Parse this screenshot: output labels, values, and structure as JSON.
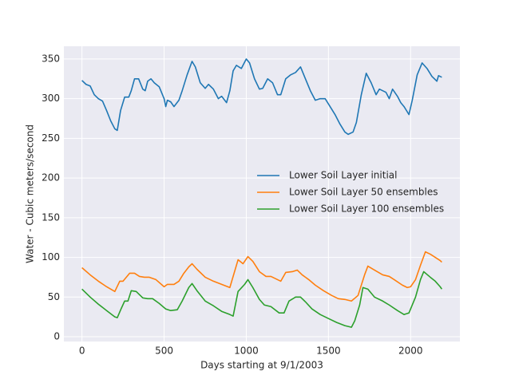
{
  "chart_data": {
    "type": "line",
    "xlabel": "Days starting at 9/1/2003",
    "ylabel": "Water - Cubic meters/second",
    "xlim": [
      -110,
      2300
    ],
    "ylim": [
      -6,
      366
    ],
    "xticks": [
      0,
      500,
      1000,
      1500,
      2000
    ],
    "yticks": [
      0,
      50,
      100,
      150,
      200,
      250,
      300,
      350
    ],
    "grid": true,
    "legend": "center right",
    "series": [
      {
        "name": "Lower Soil Layer initial",
        "color": "#1f77b4",
        "x": [
          0,
          25,
          50,
          75,
          100,
          125,
          150,
          175,
          200,
          215,
          235,
          260,
          285,
          300,
          320,
          345,
          370,
          385,
          400,
          420,
          440,
          470,
          500,
          510,
          520,
          540,
          560,
          590,
          610,
          640,
          670,
          690,
          720,
          750,
          770,
          800,
          830,
          850,
          880,
          900,
          920,
          940,
          970,
          1000,
          1020,
          1050,
          1080,
          1100,
          1130,
          1160,
          1190,
          1210,
          1240,
          1270,
          1300,
          1330,
          1360,
          1390,
          1420,
          1450,
          1480,
          1510,
          1540,
          1570,
          1600,
          1620,
          1650,
          1670,
          1700,
          1730,
          1760,
          1790,
          1810,
          1850,
          1870,
          1890,
          1920,
          1940,
          1960,
          1990,
          2010,
          2040,
          2070,
          2100,
          2130,
          2160,
          2170,
          2190
        ],
        "values": [
          323,
          318,
          316,
          305,
          300,
          297,
          285,
          272,
          262,
          260,
          285,
          302,
          302,
          310,
          325,
          325,
          312,
          310,
          322,
          325,
          320,
          315,
          300,
          290,
          298,
          296,
          290,
          298,
          310,
          330,
          347,
          340,
          320,
          313,
          318,
          312,
          300,
          303,
          295,
          310,
          335,
          342,
          338,
          350,
          345,
          325,
          312,
          313,
          325,
          320,
          305,
          305,
          325,
          330,
          333,
          340,
          325,
          310,
          298,
          300,
          300,
          290,
          280,
          268,
          258,
          255,
          258,
          270,
          305,
          332,
          320,
          305,
          312,
          308,
          300,
          312,
          303,
          295,
          290,
          280,
          298,
          330,
          345,
          338,
          328,
          322,
          329,
          327
        ]
      },
      {
        "name": "Lower Soil Layer 50 ensembles",
        "color": "#ff7f0e",
        "x": [
          0,
          50,
          100,
          150,
          200,
          230,
          250,
          290,
          320,
          350,
          380,
          410,
          450,
          500,
          520,
          560,
          590,
          620,
          650,
          670,
          700,
          750,
          800,
          850,
          900,
          950,
          980,
          1010,
          1040,
          1080,
          1120,
          1150,
          1180,
          1210,
          1240,
          1280,
          1310,
          1340,
          1380,
          1420,
          1470,
          1520,
          1560,
          1600,
          1640,
          1680,
          1720,
          1740,
          1780,
          1830,
          1870,
          1900,
          1950,
          1980,
          2000,
          2030,
          2060,
          2090,
          2120,
          2150,
          2180,
          2190
        ],
        "values": [
          87,
          78,
          70,
          63,
          57,
          70,
          70,
          80,
          80,
          76,
          75,
          75,
          72,
          63,
          66,
          66,
          70,
          80,
          88,
          92,
          85,
          75,
          70,
          66,
          62,
          97,
          92,
          101,
          95,
          82,
          76,
          76,
          73,
          70,
          81,
          82,
          84,
          78,
          72,
          65,
          58,
          52,
          48,
          47,
          45,
          52,
          78,
          89,
          84,
          78,
          76,
          72,
          65,
          62,
          63,
          72,
          90,
          107,
          104,
          100,
          96,
          94
        ]
      },
      {
        "name": "Lower Soil Layer 100 ensembles",
        "color": "#2ca02c",
        "x": [
          0,
          50,
          100,
          150,
          200,
          215,
          240,
          260,
          280,
          300,
          330,
          370,
          400,
          430,
          470,
          510,
          540,
          580,
          610,
          650,
          670,
          700,
          750,
          800,
          850,
          900,
          920,
          950,
          990,
          1010,
          1040,
          1080,
          1110,
          1150,
          1200,
          1230,
          1260,
          1300,
          1330,
          1360,
          1400,
          1450,
          1500,
          1550,
          1600,
          1640,
          1660,
          1690,
          1710,
          1740,
          1780,
          1830,
          1870,
          1920,
          1960,
          1990,
          2030,
          2060,
          2080,
          2120,
          2150,
          2180,
          2190
        ],
        "values": [
          60,
          50,
          41,
          33,
          25,
          24,
          36,
          45,
          45,
          58,
          57,
          49,
          48,
          48,
          42,
          35,
          33,
          34,
          45,
          62,
          67,
          58,
          45,
          39,
          32,
          28,
          26,
          57,
          66,
          72,
          62,
          47,
          40,
          38,
          30,
          30,
          45,
          50,
          50,
          44,
          35,
          28,
          23,
          18,
          14,
          12,
          20,
          40,
          62,
          60,
          50,
          45,
          40,
          33,
          28,
          30,
          50,
          72,
          82,
          75,
          70,
          63,
          60
        ]
      }
    ]
  }
}
